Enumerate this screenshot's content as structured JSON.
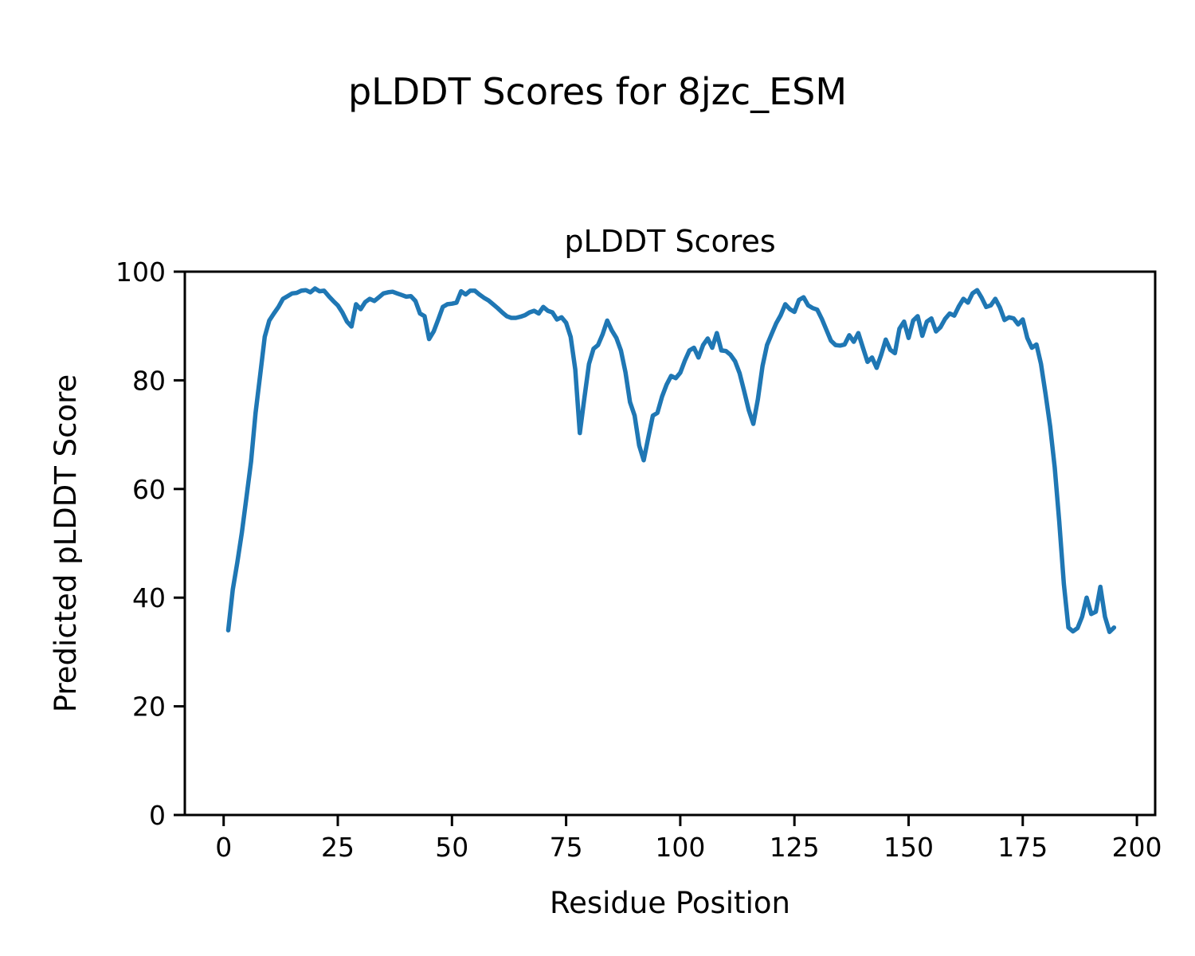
{
  "figure": {
    "suptitle": "pLDDT Scores for 8jzc_ESM",
    "background_color": "#ffffff",
    "text_color": "#000000"
  },
  "chart_data": {
    "type": "line",
    "title": "pLDDT Scores",
    "xlabel": "Residue Position",
    "ylabel": "Predicted pLDDT Score",
    "line_color": "#1f77b4",
    "grid": false,
    "legend_position": "none",
    "x_ticks": [
      0,
      25,
      50,
      75,
      100,
      125,
      150,
      175,
      200
    ],
    "y_ticks": [
      0,
      20,
      40,
      60,
      80,
      100
    ],
    "xlim": [
      -8.5,
      204
    ],
    "ylim": [
      0,
      100
    ],
    "x_start": 1,
    "values": [
      34.0,
      41.5,
      46.5,
      52.0,
      58.5,
      65.0,
      74.0,
      81.0,
      88.0,
      91.0,
      92.3,
      93.5,
      95.0,
      95.5,
      96.0,
      96.1,
      96.5,
      96.6,
      96.2,
      96.9,
      96.4,
      96.5,
      95.5,
      94.6,
      93.8,
      92.5,
      90.8,
      89.9,
      94.0,
      93.1,
      94.4,
      95.0,
      94.6,
      95.3,
      96.0,
      96.2,
      96.3,
      96.0,
      95.7,
      95.4,
      95.5,
      94.6,
      92.3,
      91.8,
      87.6,
      89.0,
      91.2,
      93.5,
      94.0,
      94.1,
      94.3,
      96.4,
      95.8,
      96.5,
      96.5,
      95.8,
      95.2,
      94.7,
      94.0,
      93.3,
      92.5,
      91.8,
      91.5,
      91.5,
      91.7,
      92.0,
      92.5,
      92.8,
      92.3,
      93.5,
      92.8,
      92.5,
      91.2,
      91.6,
      90.6,
      88.0,
      82.0,
      70.3,
      76.7,
      83.0,
      85.8,
      86.5,
      88.5,
      91.0,
      89.2,
      87.8,
      85.5,
      81.5,
      76.0,
      73.5,
      68.0,
      65.3,
      69.5,
      73.5,
      74.0,
      77.0,
      79.2,
      80.8,
      80.4,
      81.4,
      83.6,
      85.5,
      86.0,
      84.2,
      86.5,
      87.7,
      86.0,
      88.7,
      85.5,
      85.4,
      84.7,
      83.5,
      81.3,
      78.0,
      74.5,
      72.0,
      76.5,
      82.6,
      86.5,
      88.5,
      90.5,
      92.0,
      94.0,
      93.1,
      92.6,
      94.8,
      95.3,
      93.8,
      93.3,
      93.0,
      91.3,
      89.3,
      87.3,
      86.5,
      86.4,
      86.6,
      88.3,
      87.1,
      88.7,
      86.0,
      83.4,
      84.2,
      82.3,
      84.7,
      87.5,
      85.6,
      85.0,
      89.5,
      90.8,
      87.8,
      91.0,
      91.8,
      88.2,
      90.8,
      91.4,
      89.0,
      89.8,
      91.3,
      92.3,
      91.9,
      93.6,
      95.0,
      94.3,
      96.0,
      96.6,
      95.2,
      93.5,
      93.8,
      95.0,
      93.4,
      91.1,
      91.6,
      91.4,
      90.3,
      91.2,
      87.8,
      86.0,
      86.6,
      83.0,
      77.5,
      71.5,
      64.0,
      54.0,
      42.5,
      34.5,
      33.8,
      34.4,
      36.5,
      40.0,
      37.0,
      37.4,
      42.0,
      36.5,
      33.7,
      34.5
    ]
  }
}
